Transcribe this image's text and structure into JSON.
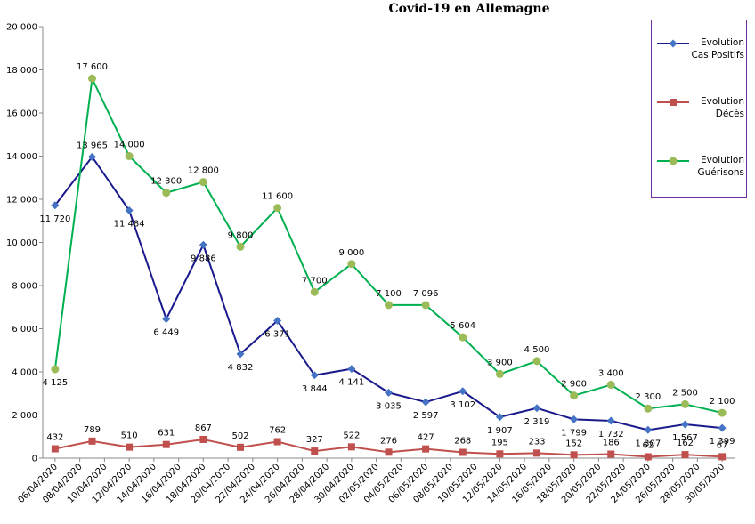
{
  "chart_data": {
    "type": "line",
    "title": "Covid-19 en Allemagne",
    "x": [
      "06/04/2020",
      "09/04/2020",
      "12/04/2020",
      "15/04/2020",
      "18/04/2020",
      "21/04/2020",
      "24/04/2020",
      "27/04/2020",
      "30/04/2020",
      "03/05/2020",
      "06/05/2020",
      "09/05/2020",
      "12/05/2020",
      "15/05/2020",
      "18/05/2020",
      "21/05/2020",
      "24/05/2020",
      "27/05/2020",
      "30/05/2020"
    ],
    "xlim": [
      "05/04/2020",
      "31/05/2020"
    ],
    "xticks": [
      "06/04/2020",
      "08/04/2020",
      "10/04/2020",
      "12/04/2020",
      "14/04/2020",
      "16/04/2020",
      "18/04/2020",
      "20/04/2020",
      "22/04/2020",
      "24/04/2020",
      "26/04/2020",
      "28/04/2020",
      "30/04/2020",
      "02/05/2020",
      "04/05/2020",
      "06/05/2020",
      "08/05/2020",
      "10/05/2020",
      "12/05/2020",
      "14/05/2020",
      "16/05/2020",
      "18/05/2020",
      "20/05/2020",
      "22/05/2020",
      "24/05/2020",
      "26/05/2020",
      "28/05/2020",
      "30/05/2020"
    ],
    "ylim": [
      0,
      20000
    ],
    "yticks": [
      0,
      {
        "value": 2000,
        "label": "2 000"
      },
      {
        "value": 4000,
        "label": "4 000"
      },
      {
        "value": 6000,
        "label": "6 000"
      },
      {
        "value": 8000,
        "label": "8 000"
      },
      {
        "value": 10000,
        "label": "10 000"
      },
      {
        "value": 12000,
        "label": "12 000"
      },
      {
        "value": 14000,
        "label": "14 000"
      },
      {
        "value": 16000,
        "label": "16 000"
      },
      {
        "value": 18000,
        "label": "18 000"
      },
      {
        "value": 20000,
        "label": "20 000"
      }
    ],
    "grid": false,
    "legend": "right",
    "series": [
      {
        "name": "Evolution Cas Positifs",
        "color": "#1a1a8c",
        "marker_color": "#4472c4",
        "marker": "diamond",
        "values": [
          11720,
          13965,
          11484,
          6449,
          9886,
          4832,
          6371,
          3844,
          4141,
          3035,
          2597,
          3102,
          1907,
          2319,
          1799,
          1732,
          1307,
          1567,
          1399
        ],
        "value_labels": [
          "11 720",
          "13 965",
          "11 484",
          "6 449",
          "9 886",
          "4 832",
          "6 371",
          "3 844",
          "4 141",
          "3 035",
          "2 597",
          "3 102",
          "1 907",
          "2 319",
          "1 799",
          "1 732",
          "1 307",
          "1 567",
          "1 399"
        ]
      },
      {
        "name": "Evolution Décès",
        "color": "#c0504d",
        "marker_color": "#c0504d",
        "marker": "square",
        "values": [
          432,
          789,
          510,
          631,
          867,
          502,
          762,
          327,
          522,
          276,
          427,
          268,
          195,
          233,
          152,
          186,
          62,
          162,
          67
        ],
        "value_labels": [
          "432",
          "789",
          "510",
          "631",
          "867",
          "502",
          "762",
          "327",
          "522",
          "276",
          "427",
          "268",
          "195",
          "233",
          "152",
          "186",
          "62",
          "162",
          "67"
        ]
      },
      {
        "name": "Evolution Guérisons",
        "color": "#00b050",
        "marker_color": "#9bbb59",
        "marker": "circle",
        "values": [
          4125,
          17600,
          14000,
          12300,
          12800,
          9800,
          11600,
          7700,
          9000,
          7100,
          7096,
          5604,
          3900,
          4500,
          2900,
          3400,
          2300,
          2500,
          2100
        ],
        "value_labels": [
          "4 125",
          "17 600",
          "14 000",
          "12 300",
          "12 800",
          "9 800",
          "11 600",
          "7 700",
          "9 000",
          "7 100",
          "7 096",
          "5 604",
          "3 900",
          "4 500",
          "2 900",
          "3 400",
          "2 300",
          "2 500",
          "2 100"
        ]
      }
    ]
  }
}
